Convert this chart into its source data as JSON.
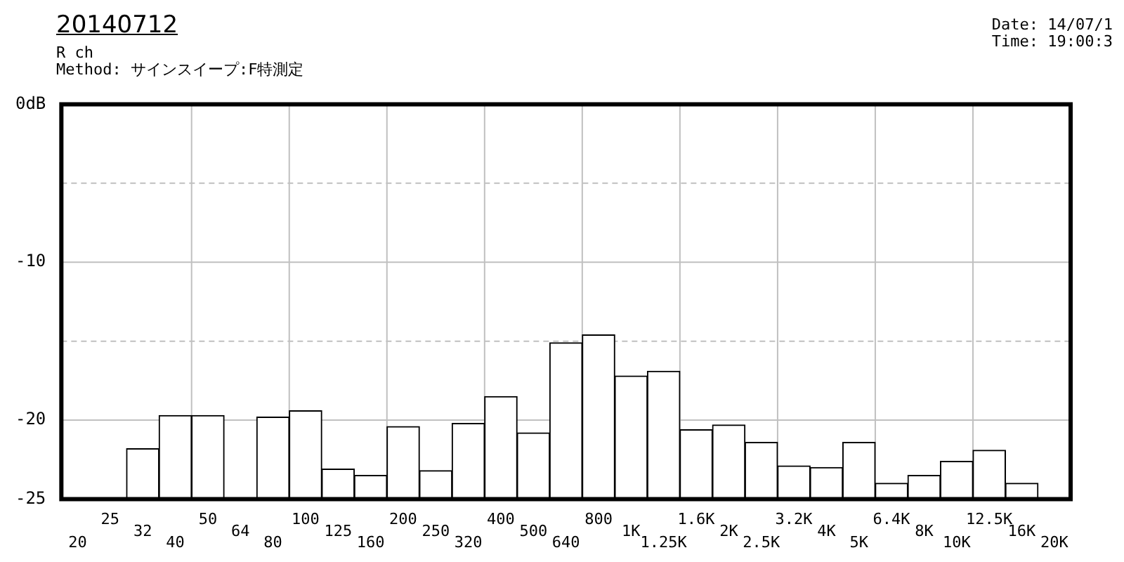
{
  "chart_data": {
    "type": "bar",
    "title": "20140712",
    "subtitle": "R ch",
    "annotations": [
      "Method:  サインスイープ:F特測定",
      "Date: 14/07/1",
      "Time: 19:00:3"
    ],
    "categories": [
      "20",
      "25",
      "32",
      "40",
      "50",
      "64",
      "80",
      "100",
      "125",
      "160",
      "200",
      "250",
      "320",
      "400",
      "500",
      "640",
      "800",
      "1K",
      "1.25K",
      "1.6K",
      "2K",
      "2.5K",
      "3.2K",
      "4K",
      "5K",
      "6.4K",
      "8K",
      "10K",
      "12.5K",
      "16K",
      "20K"
    ],
    "values": [
      null,
      null,
      3.2,
      5.3,
      5.3,
      null,
      5.2,
      5.6,
      1.9,
      1.5,
      4.6,
      1.8,
      4.8,
      6.5,
      4.2,
      9.9,
      10.4,
      7.8,
      8.1,
      4.4,
      4.7,
      3.6,
      2.1,
      2.0,
      3.6,
      1.0,
      1.5,
      2.4,
      3.1,
      1.0,
      null
    ],
    "base": [
      null,
      null,
      -25,
      -25,
      -25,
      null,
      -25,
      -25,
      -25,
      -25,
      -25,
      -25,
      -25,
      -25,
      -25,
      -25,
      -25,
      -25,
      -25,
      -25,
      -25,
      -25,
      -25,
      -25,
      -25,
      -25,
      -25,
      -25,
      -25,
      -25,
      null
    ],
    "color": "#ffffff",
    "ylim": [
      -25,
      0
    ],
    "yticks": [
      {
        "value": 0,
        "label": "0dB"
      },
      {
        "value": -5,
        "label": null
      },
      -10,
      {
        "value": -15,
        "label": null
      },
      -20,
      -25
    ],
    "grid": true,
    "legend": false
  }
}
